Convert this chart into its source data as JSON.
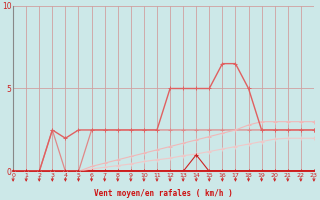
{
  "xlabel": "Vent moyen/en rafales ( km/h )",
  "bg_color": "#cce8e8",
  "grid_color": "#b8d8d8",
  "grid_line_color": "#d0a0a0",
  "xlim": [
    0,
    23
  ],
  "ylim": [
    0,
    10
  ],
  "yticks": [
    0,
    5,
    10
  ],
  "xticks": [
    0,
    1,
    2,
    3,
    4,
    5,
    6,
    7,
    8,
    9,
    10,
    11,
    12,
    13,
    14,
    15,
    16,
    17,
    18,
    19,
    20,
    21,
    22,
    23
  ],
  "series": [
    {
      "x": [
        0,
        1,
        2,
        3,
        4,
        5,
        6,
        7,
        8,
        9,
        10,
        11,
        12,
        13,
        14,
        15,
        16,
        17,
        18,
        19,
        20,
        21,
        22,
        23
      ],
      "y": [
        0,
        0,
        0,
        2.5,
        0,
        0,
        2.5,
        2.5,
        2.5,
        2.5,
        2.5,
        2.5,
        2.5,
        2.5,
        2.5,
        2.5,
        2.5,
        2.5,
        2.5,
        2.5,
        2.5,
        2.5,
        2.5,
        2.5
      ],
      "color": "#e08888",
      "lw": 0.9
    },
    {
      "x": [
        0,
        1,
        2,
        3,
        4,
        5,
        6,
        7,
        8,
        9,
        10,
        11,
        12,
        13,
        14,
        15,
        16,
        17,
        18,
        19,
        20,
        21,
        22,
        23
      ],
      "y": [
        0,
        0,
        0,
        0,
        0,
        0,
        0.3,
        0.5,
        0.7,
        0.9,
        1.1,
        1.3,
        1.5,
        1.7,
        1.9,
        2.1,
        2.3,
        2.5,
        2.8,
        3.0,
        3.0,
        3.0,
        3.0,
        3.0
      ],
      "color": "#f0b8b8",
      "lw": 0.8
    },
    {
      "x": [
        0,
        1,
        2,
        3,
        4,
        5,
        6,
        7,
        8,
        9,
        10,
        11,
        12,
        13,
        14,
        15,
        16,
        17,
        18,
        19,
        20,
        21,
        22,
        23
      ],
      "y": [
        0,
        0,
        0,
        0,
        0,
        0,
        0.15,
        0.25,
        0.35,
        0.45,
        0.6,
        0.7,
        0.8,
        0.95,
        1.05,
        1.2,
        1.35,
        1.5,
        1.65,
        1.8,
        1.95,
        2.0,
        2.0,
        2.0
      ],
      "color": "#f0c8c8",
      "lw": 0.8
    },
    {
      "x": [
        0,
        1,
        2,
        3,
        4,
        5,
        6,
        7,
        8,
        9,
        10,
        11,
        12,
        13,
        14,
        15,
        16,
        17,
        18,
        19,
        20,
        21,
        22,
        23
      ],
      "y": [
        0,
        0,
        0,
        2.5,
        2.0,
        2.5,
        2.5,
        2.5,
        2.5,
        2.5,
        2.5,
        2.5,
        5.0,
        5.0,
        5.0,
        5.0,
        6.5,
        6.5,
        5.0,
        2.5,
        2.5,
        2.5,
        2.5,
        2.5
      ],
      "color": "#e06060",
      "lw": 1.0
    },
    {
      "x": [
        0,
        1,
        2,
        3,
        4,
        5,
        6,
        7,
        8,
        9,
        10,
        11,
        12,
        13,
        14,
        15,
        16,
        17,
        18,
        19,
        20,
        21,
        22,
        23
      ],
      "y": [
        0,
        0,
        0,
        0,
        0,
        0,
        0,
        0,
        0,
        0,
        0,
        0,
        0,
        0,
        1.0,
        0,
        0,
        0,
        0,
        0,
        0,
        0,
        0,
        0
      ],
      "color": "#cc2222",
      "lw": 0.8
    }
  ],
  "marker": "+",
  "marker_size": 2.5,
  "marker_lw": 0.7,
  "axis_line_color": "#cc0000",
  "tick_color": "#cc2222",
  "xlabel_color": "#cc1111",
  "xlabel_fontsize": 5.5,
  "ytick_fontsize": 5.5,
  "xtick_fontsize": 4.5,
  "left_spine_color": "#888888"
}
